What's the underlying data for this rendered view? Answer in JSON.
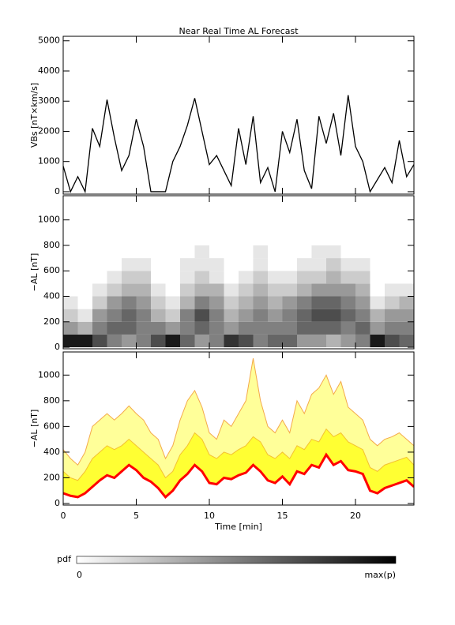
{
  "chart_data": [
    {
      "type": "line",
      "title": "Near Real Time AL Forecast",
      "ylabel": "VBs [nT×km/s]",
      "color": "#000000",
      "xlim": [
        0,
        24
      ],
      "xticks": [
        0,
        5,
        10,
        15,
        20
      ],
      "ylim": [
        -80,
        5150
      ],
      "yticks": [
        0,
        1000,
        2000,
        3000,
        4000,
        5000
      ],
      "x": [
        0,
        0.5,
        1,
        1.5,
        2,
        2.5,
        3,
        3.5,
        4,
        4.5,
        5,
        5.5,
        6,
        6.5,
        7,
        7.5,
        8,
        8.5,
        9,
        9.5,
        10,
        10.5,
        11,
        11.5,
        12,
        12.5,
        13,
        13.5,
        14,
        14.5,
        15,
        15.5,
        16,
        16.5,
        17,
        17.5,
        18,
        18.5,
        19,
        19.5,
        20,
        20.5,
        21,
        21.5,
        22,
        22.5,
        23,
        23.5,
        24
      ],
      "values": [
        850,
        0,
        500,
        0,
        2100,
        1500,
        3050,
        1800,
        700,
        1200,
        2400,
        1500,
        0,
        0,
        0,
        1000,
        1500,
        2200,
        3100,
        2000,
        900,
        1200,
        700,
        200,
        2100,
        900,
        2500,
        300,
        800,
        0,
        2000,
        1300,
        2400,
        700,
        100,
        2500,
        1600,
        2600,
        1200,
        3200,
        1500,
        1000,
        0,
        400,
        800,
        300,
        1700,
        500,
        900
      ]
    },
    {
      "type": "heatmap",
      "ylabel": "−AL [nT]",
      "xlim": [
        0,
        24
      ],
      "xticks": [
        0,
        5,
        10,
        15,
        20
      ],
      "ylim": [
        -12,
        1190
      ],
      "yticks": [
        0,
        200,
        400,
        600,
        800,
        1000
      ],
      "x_edges": [
        0,
        1,
        2,
        3,
        4,
        5,
        6,
        7,
        8,
        9,
        10,
        11,
        12,
        13,
        14,
        15,
        16,
        17,
        18,
        19,
        20,
        21,
        22,
        23,
        24
      ],
      "y_edges": [
        0,
        100,
        200,
        300,
        400,
        500,
        600,
        700,
        800
      ],
      "values": [
        [
          0.9,
          0.4,
          0.2,
          0.1,
          0,
          0,
          0,
          0
        ],
        [
          0.9,
          0.3,
          0.1,
          0,
          0,
          0,
          0,
          0
        ],
        [
          0.7,
          0.5,
          0.4,
          0.2,
          0.1,
          0,
          0,
          0
        ],
        [
          0.5,
          0.6,
          0.5,
          0.4,
          0.2,
          0.1,
          0,
          0
        ],
        [
          0.4,
          0.6,
          0.6,
          0.5,
          0.3,
          0.2,
          0.1,
          0
        ],
        [
          0.5,
          0.5,
          0.5,
          0.4,
          0.3,
          0.2,
          0.1,
          0
        ],
        [
          0.7,
          0.5,
          0.3,
          0.2,
          0.1,
          0,
          0,
          0
        ],
        [
          0.9,
          0.4,
          0.2,
          0.1,
          0,
          0,
          0,
          0
        ],
        [
          0.6,
          0.5,
          0.5,
          0.3,
          0.2,
          0.1,
          0.1,
          0
        ],
        [
          0.4,
          0.6,
          0.7,
          0.5,
          0.3,
          0.2,
          0.1,
          0.1
        ],
        [
          0.5,
          0.5,
          0.5,
          0.4,
          0.3,
          0.1,
          0.1,
          0
        ],
        [
          0.8,
          0.4,
          0.3,
          0.2,
          0.1,
          0,
          0,
          0
        ],
        [
          0.7,
          0.5,
          0.4,
          0.3,
          0.2,
          0.1,
          0,
          0
        ],
        [
          0.5,
          0.5,
          0.5,
          0.4,
          0.3,
          0.2,
          0.1,
          0.1
        ],
        [
          0.6,
          0.5,
          0.4,
          0.3,
          0.2,
          0.1,
          0,
          0
        ],
        [
          0.6,
          0.5,
          0.5,
          0.4,
          0.2,
          0.1,
          0,
          0
        ],
        [
          0.4,
          0.6,
          0.6,
          0.5,
          0.3,
          0.2,
          0.1,
          0
        ],
        [
          0.4,
          0.6,
          0.7,
          0.6,
          0.4,
          0.2,
          0.1,
          0.1
        ],
        [
          0.3,
          0.6,
          0.7,
          0.6,
          0.4,
          0.3,
          0.2,
          0.1
        ],
        [
          0.4,
          0.5,
          0.6,
          0.5,
          0.4,
          0.2,
          0.1,
          0
        ],
        [
          0.5,
          0.6,
          0.5,
          0.4,
          0.3,
          0.2,
          0.1,
          0
        ],
        [
          0.9,
          0.4,
          0.3,
          0.1,
          0,
          0,
          0,
          0
        ],
        [
          0.7,
          0.5,
          0.4,
          0.2,
          0.1,
          0,
          0,
          0
        ],
        [
          0.6,
          0.5,
          0.4,
          0.3,
          0.1,
          0,
          0,
          0
        ]
      ],
      "colorbar_label": "pdf",
      "colorbar_ticks": [
        0,
        {
          "value": 1,
          "label": "max(p)"
        }
      ]
    },
    {
      "type": "area",
      "ylabel": "−AL [nT]",
      "xlabel": "Time [min]",
      "xlim": [
        0,
        24
      ],
      "xticks": [
        0,
        5,
        10,
        15,
        20
      ],
      "ylim": [
        -12,
        1180
      ],
      "yticks": [
        0,
        200,
        400,
        600,
        800,
        1000
      ],
      "x": [
        0,
        0.5,
        1,
        1.5,
        2,
        2.5,
        3,
        3.5,
        4,
        4.5,
        5,
        5.5,
        6,
        6.5,
        7,
        7.5,
        8,
        8.5,
        9,
        9.5,
        10,
        10.5,
        11,
        11.5,
        12,
        12.5,
        13,
        13.5,
        14,
        14.5,
        15,
        15.5,
        16,
        16.5,
        17,
        17.5,
        18,
        18.5,
        19,
        19.5,
        20,
        20.5,
        21,
        21.5,
        22,
        22.5,
        23,
        23.5,
        24
      ],
      "series": [
        {
          "color": "#ffff99",
          "line": "#f4a94a",
          "line_width": 1,
          "values": [
            420,
            350,
            300,
            400,
            600,
            650,
            700,
            650,
            700,
            760,
            700,
            650,
            550,
            500,
            350,
            450,
            650,
            800,
            880,
            750,
            550,
            500,
            650,
            600,
            700,
            800,
            1130,
            800,
            600,
            550,
            650,
            550,
            800,
            700,
            850,
            900,
            1000,
            850,
            950,
            750,
            700,
            650,
            500,
            450,
            500,
            520,
            550,
            500,
            450
          ]
        },
        {
          "color": "#ffff33",
          "line": "#f4c030",
          "line_width": 1,
          "values": [
            250,
            200,
            180,
            250,
            350,
            400,
            450,
            420,
            450,
            500,
            450,
            400,
            350,
            300,
            200,
            250,
            380,
            450,
            550,
            500,
            380,
            350,
            400,
            380,
            420,
            450,
            520,
            480,
            380,
            350,
            400,
            350,
            450,
            420,
            500,
            480,
            580,
            520,
            550,
            480,
            450,
            420,
            280,
            250,
            300,
            320,
            340,
            360,
            300
          ]
        },
        {
          "color": "#ffffff",
          "line": "#ff0000",
          "line_width": 3,
          "values": [
            80,
            60,
            50,
            80,
            130,
            180,
            220,
            200,
            250,
            300,
            260,
            200,
            170,
            120,
            50,
            100,
            180,
            230,
            300,
            250,
            160,
            150,
            200,
            190,
            220,
            240,
            300,
            250,
            180,
            160,
            210,
            150,
            250,
            230,
            300,
            280,
            380,
            300,
            330,
            260,
            250,
            230,
            100,
            80,
            120,
            140,
            160,
            180,
            130
          ]
        }
      ]
    }
  ]
}
